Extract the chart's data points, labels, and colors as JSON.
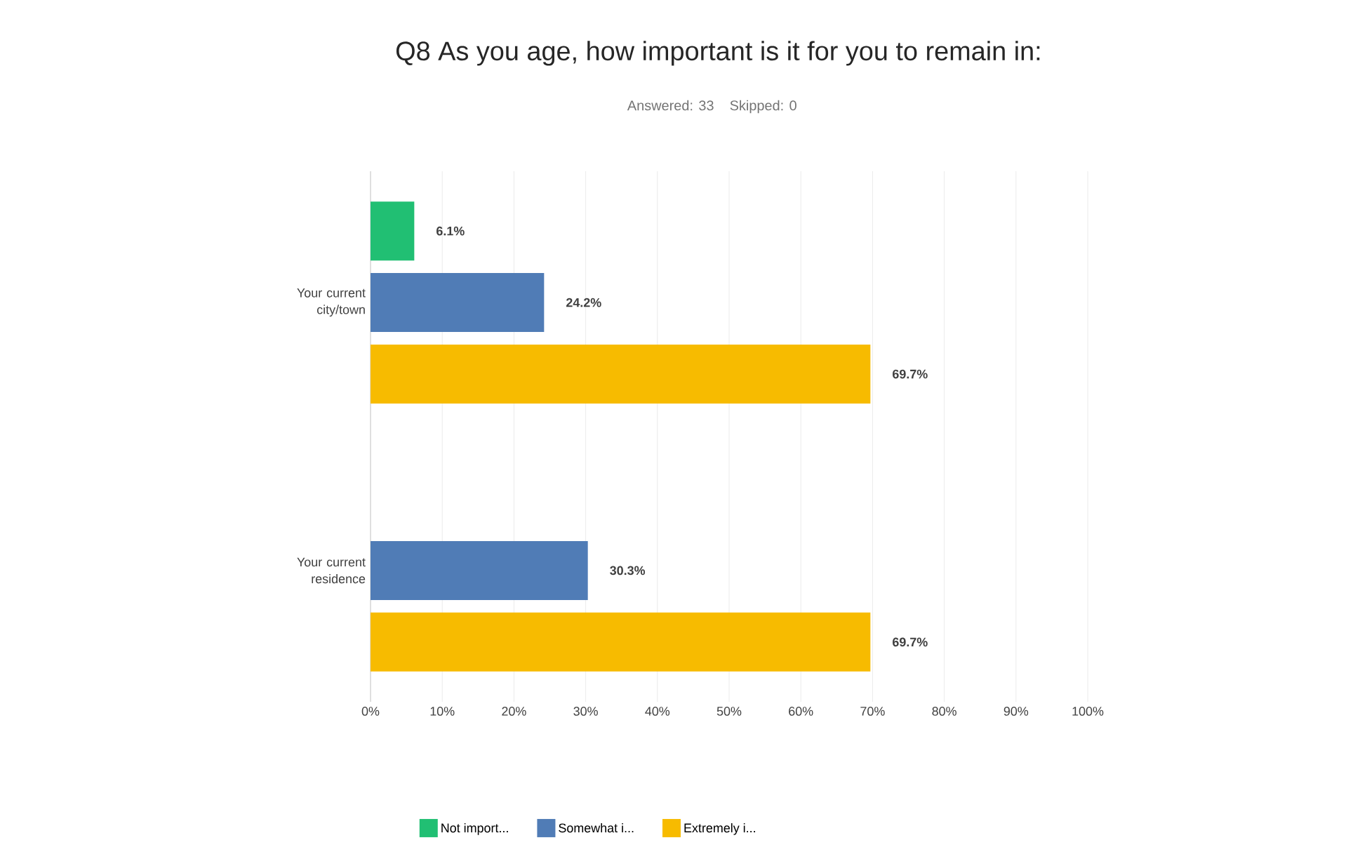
{
  "chart_data": {
    "type": "bar",
    "orientation": "horizontal",
    "title": "Q8 As you age, how important is it for you to remain in:",
    "subtitle": "Answered: 33    Skipped: 0",
    "categories": [
      "Your current city/town",
      "Your current residence"
    ],
    "series": [
      {
        "name": "Not import...",
        "color": "#21bf73",
        "values": [
          6.1,
          0
        ],
        "value_labels": [
          "6.1%",
          null
        ]
      },
      {
        "name": "Somewhat i...",
        "color": "#507cb6",
        "values": [
          24.2,
          30.3
        ],
        "value_labels": [
          "24.2%",
          "30.3%"
        ]
      },
      {
        "name": "Extremely i...",
        "color": "#f7bb00",
        "values": [
          69.7,
          69.7
        ],
        "value_labels": [
          "69.7%",
          "69.7%"
        ]
      }
    ],
    "xlim": [
      0,
      100
    ],
    "xticks": [
      {
        "value": 0,
        "label": "0%"
      },
      {
        "value": 10,
        "label": "10%"
      },
      {
        "value": 20,
        "label": "20%"
      },
      {
        "value": 30,
        "label": "30%"
      },
      {
        "value": 40,
        "label": "40%"
      },
      {
        "value": 50,
        "label": "50%"
      },
      {
        "value": 60,
        "label": "60%"
      },
      {
        "value": 70,
        "label": "70%"
      },
      {
        "value": 80,
        "label": "80%"
      },
      {
        "value": 90,
        "label": "90%"
      },
      {
        "value": 100,
        "label": "100%"
      }
    ],
    "grid": "x",
    "legend": "bottom"
  }
}
